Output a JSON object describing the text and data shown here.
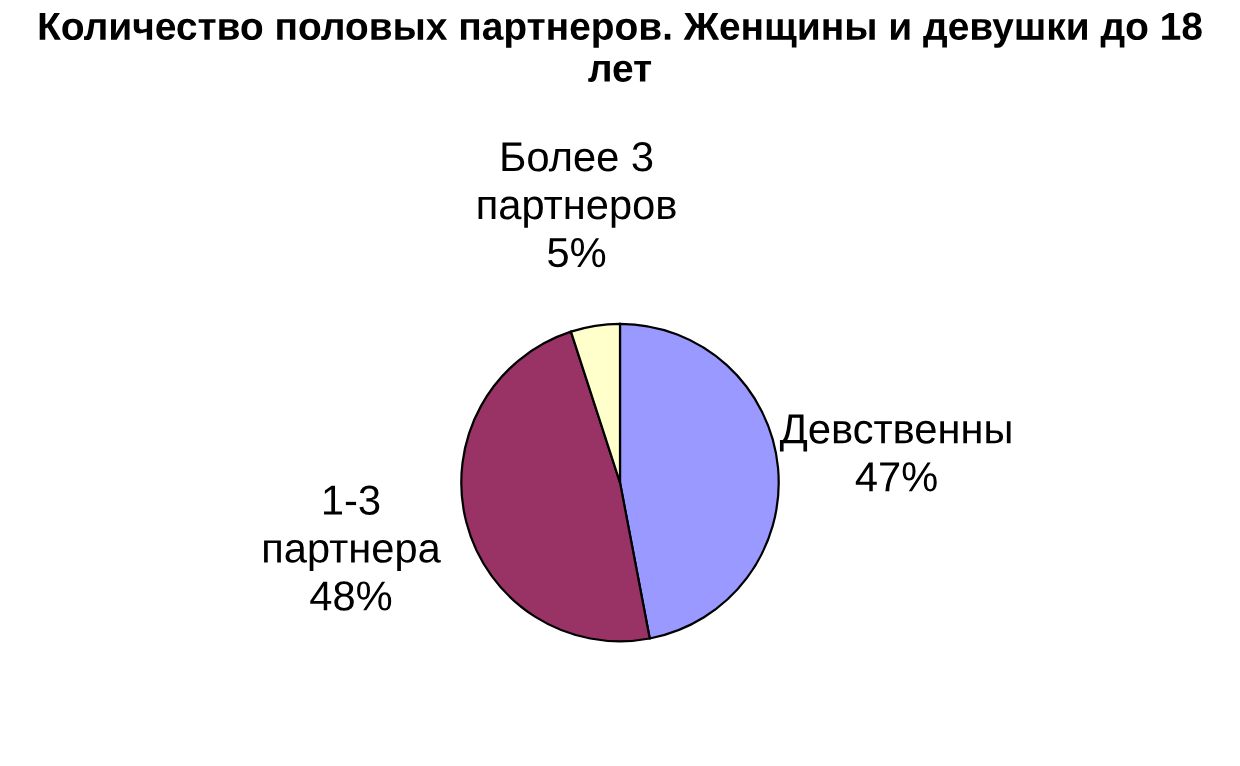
{
  "chart_data": {
    "type": "pie",
    "title": "Количество половых партнеров. Женщины и девушки до 18 лет",
    "categories": [
      "Девственны",
      "1-3 партнера",
      "Более 3 партнеров"
    ],
    "values": [
      47,
      48,
      5
    ],
    "colors": [
      "#9999ff",
      "#993366",
      "#ffffcc"
    ],
    "value_labels": [
      "47%",
      "48%",
      "5%"
    ],
    "legend": false
  }
}
